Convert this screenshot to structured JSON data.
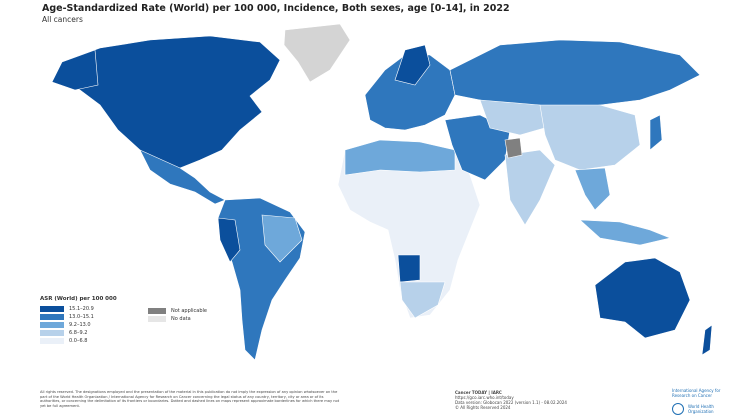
{
  "title": "Age-Standardized Rate (World) per 100 000, Incidence, Both sexes, age [0-14], in 2022",
  "subtitle": "All cancers",
  "legend": {
    "title": "ASR (World) per 100 000",
    "classes": [
      {
        "label": "15.1–20.9",
        "color": "#0b4f9c"
      },
      {
        "label": "13.0–15.1",
        "color": "#2f77bd"
      },
      {
        "label": "9.2–13.0",
        "color": "#6ea8da"
      },
      {
        "label": "6.8–9.2",
        "color": "#b7d1ea"
      },
      {
        "label": "0.0–6.8",
        "color": "#eaf0f8"
      }
    ],
    "other": [
      {
        "label": "Not applicable",
        "color": "#808080"
      },
      {
        "label": "No data",
        "color": "#e6e6e6"
      }
    ]
  },
  "footer": {
    "disclaimer": "All rights reserved. The designations employed and the presentation of the material in this publication do not imply the expression of any opinion whatsoever on the part of the World Health Organization / International Agency for Research on Cancer concerning the legal status of any country, territory, city or area or of its authorities, or concerning the delimitation of its frontiers or boundaries. Dotted and dashed lines on maps represent approximate borderlines for which there may not yet be full agreement.",
    "source_title": "Cancer TODAY | IARC",
    "source_url": "https://gco.iarc.who.int/today",
    "data_version": "Data version: Globocan 2022 (version 1.1) - 08.02.2024",
    "copyright": "© All Rights Reserved 2024",
    "iarc": "International Agency for Research on Cancer",
    "who": "World Health Organization"
  }
}
